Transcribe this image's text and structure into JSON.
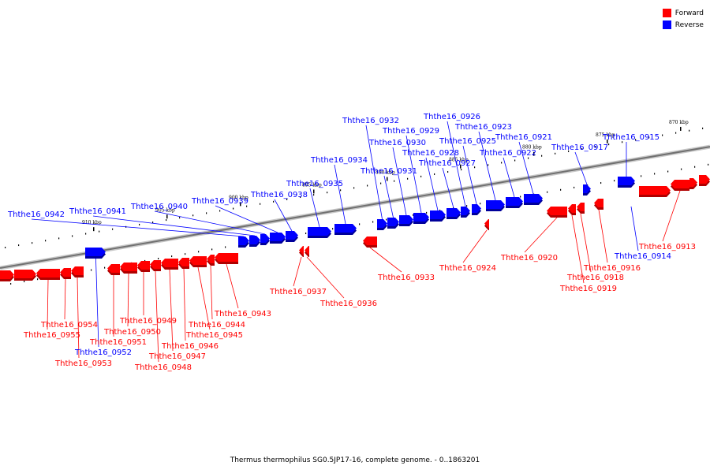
{
  "legend": {
    "items": [
      {
        "label": "Forward",
        "color": "#ff0000"
      },
      {
        "label": "Reverse",
        "color": "#0000ff"
      }
    ]
  },
  "footer": {
    "title": "Thermus thermophilus SG0.5JP17-16, complete genome. - 0..1863201"
  },
  "colors": {
    "forward": "#ff0000",
    "reverse": "#0000ff",
    "backbone": "#808080"
  },
  "scale_marks": [
    {
      "kb": 870,
      "label": "870 kbp"
    },
    {
      "kb": 875,
      "label": "875 kbp"
    },
    {
      "kb": 880,
      "label": "880 kbp"
    },
    {
      "kb": 885,
      "label": "885 kbp"
    },
    {
      "kb": 890,
      "label": "890 kbp"
    },
    {
      "kb": 895,
      "label": "895 kbp"
    },
    {
      "kb": 900,
      "label": "900 kbp"
    },
    {
      "kb": 905,
      "label": "905 kbp"
    },
    {
      "kb": 910,
      "label": "910 kbp"
    }
  ],
  "genes": [
    {
      "name": "Ththe16_0913",
      "strand": "forward"
    },
    {
      "name": "Ththe16_0914",
      "strand": "reverse"
    },
    {
      "name": "Ththe16_0915",
      "strand": "reverse"
    },
    {
      "name": "Ththe16_0916",
      "strand": "forward"
    },
    {
      "name": "Ththe16_0917",
      "strand": "reverse"
    },
    {
      "name": "Ththe16_0918",
      "strand": "forward"
    },
    {
      "name": "Ththe16_0919",
      "strand": "forward"
    },
    {
      "name": "Ththe16_0920",
      "strand": "forward"
    },
    {
      "name": "Ththe16_0921",
      "strand": "reverse"
    },
    {
      "name": "Ththe16_0922",
      "strand": "reverse"
    },
    {
      "name": "Ththe16_0923",
      "strand": "reverse"
    },
    {
      "name": "Ththe16_0924",
      "strand": "forward"
    },
    {
      "name": "Ththe16_0925",
      "strand": "reverse"
    },
    {
      "name": "Ththe16_0926",
      "strand": "reverse"
    },
    {
      "name": "Ththe16_0927",
      "strand": "reverse"
    },
    {
      "name": "Ththe16_0928",
      "strand": "reverse"
    },
    {
      "name": "Ththe16_0929",
      "strand": "reverse"
    },
    {
      "name": "Ththe16_0930",
      "strand": "reverse"
    },
    {
      "name": "Ththe16_0931",
      "strand": "reverse"
    },
    {
      "name": "Ththe16_0932",
      "strand": "reverse"
    },
    {
      "name": "Ththe16_0933",
      "strand": "forward"
    },
    {
      "name": "Ththe16_0934",
      "strand": "reverse"
    },
    {
      "name": "Ththe16_0935",
      "strand": "reverse"
    },
    {
      "name": "Ththe16_0936",
      "strand": "forward"
    },
    {
      "name": "Ththe16_0937",
      "strand": "forward"
    },
    {
      "name": "Ththe16_0938",
      "strand": "reverse"
    },
    {
      "name": "Ththe16_0939",
      "strand": "reverse"
    },
    {
      "name": "Ththe16_0940",
      "strand": "reverse"
    },
    {
      "name": "Ththe16_0941",
      "strand": "reverse"
    },
    {
      "name": "Ththe16_0942",
      "strand": "reverse"
    },
    {
      "name": "Ththe16_0943",
      "strand": "forward"
    },
    {
      "name": "Ththe16_0944",
      "strand": "forward"
    },
    {
      "name": "Ththe16_0945",
      "strand": "forward"
    },
    {
      "name": "Ththe16_0946",
      "strand": "forward"
    },
    {
      "name": "Ththe16_0947",
      "strand": "forward"
    },
    {
      "name": "Ththe16_0948",
      "strand": "forward"
    },
    {
      "name": "Ththe16_0949",
      "strand": "forward"
    },
    {
      "name": "Ththe16_0950",
      "strand": "forward"
    },
    {
      "name": "Ththe16_0951",
      "strand": "forward"
    },
    {
      "name": "Ththe16_0952",
      "strand": "reverse"
    },
    {
      "name": "Ththe16_0953",
      "strand": "forward"
    },
    {
      "name": "Ththe16_0954",
      "strand": "forward"
    },
    {
      "name": "Ththe16_0955",
      "strand": "forward"
    }
  ]
}
